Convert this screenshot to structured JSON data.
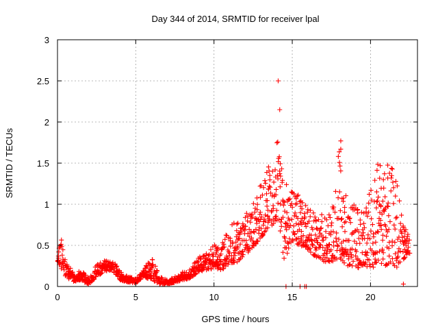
{
  "chart_data": {
    "type": "scatter",
    "title": "Day 344 of 2014, SRMTID for receiver lpal",
    "xlabel": "GPS time / hours",
    "ylabel": "SRMTID / TECUs",
    "xlim": [
      0,
      23
    ],
    "ylim": [
      0,
      3
    ],
    "xticks": [
      0,
      5,
      10,
      15,
      20
    ],
    "xtick_labels": [
      "0",
      "5",
      "10",
      "15",
      "20"
    ],
    "yticks": [
      0,
      0.5,
      1,
      1.5,
      2,
      2.5,
      3
    ],
    "ytick_labels": [
      "0",
      "0.5",
      "1",
      "1.5",
      "2",
      "2.5",
      "3"
    ],
    "grid": true,
    "marker": "+",
    "color": "#ff0000",
    "envelope": {
      "x": [
        0,
        0.3,
        0.5,
        1,
        1.5,
        2,
        2.5,
        3,
        3.5,
        4,
        4.5,
        5,
        5.5,
        6,
        6.5,
        7,
        7.5,
        8,
        8.5,
        9,
        9.5,
        10,
        10.5,
        11,
        11.5,
        12,
        12.5,
        13,
        13.5,
        14,
        14.5,
        15,
        15.5,
        16,
        16.5,
        17,
        17.5,
        18,
        18.5,
        19,
        19.5,
        20,
        20.5,
        21,
        21.5,
        22,
        22.5
      ],
      "y_low": [
        0.3,
        0.2,
        0.12,
        0.06,
        0.08,
        0.02,
        0.12,
        0.18,
        0.2,
        0.08,
        0.05,
        0.04,
        0.12,
        0.08,
        0.03,
        0.03,
        0.05,
        0.08,
        0.1,
        0.18,
        0.2,
        0.22,
        0.2,
        0.28,
        0.3,
        0.4,
        0.45,
        0.6,
        0.7,
        0.8,
        0.3,
        0.55,
        0.5,
        0.45,
        0.35,
        0.3,
        0.3,
        0.35,
        0.25,
        0.25,
        0.2,
        0.2,
        0.3,
        0.25,
        0.2,
        0.3,
        0.4
      ],
      "y_high": [
        0.4,
        0.6,
        0.3,
        0.18,
        0.2,
        0.1,
        0.28,
        0.32,
        0.35,
        0.18,
        0.12,
        0.1,
        0.2,
        0.4,
        0.12,
        0.08,
        0.12,
        0.18,
        0.22,
        0.35,
        0.4,
        0.5,
        0.55,
        0.75,
        0.8,
        0.9,
        1.0,
        1.25,
        1.6,
        1.9,
        1.4,
        1.3,
        1.05,
        1.0,
        0.85,
        0.9,
        0.9,
        1.75,
        1.0,
        1.0,
        0.9,
        1.5,
        1.5,
        1.5,
        1.55,
        0.85,
        0.6
      ]
    },
    "spikes": [
      {
        "x": 14.1,
        "y": 2.5
      },
      {
        "x": 14.2,
        "y": 2.15
      },
      {
        "x": 18.1,
        "y": 1.77
      },
      {
        "x": 18.1,
        "y": 1.67
      },
      {
        "x": 14.6,
        "y": 0.0
      },
      {
        "x": 15.5,
        "y": 0.0
      },
      {
        "x": 15.8,
        "y": 0.0
      },
      {
        "x": 15.9,
        "y": 0.0
      },
      {
        "x": 22.1,
        "y": 0.03
      }
    ]
  }
}
